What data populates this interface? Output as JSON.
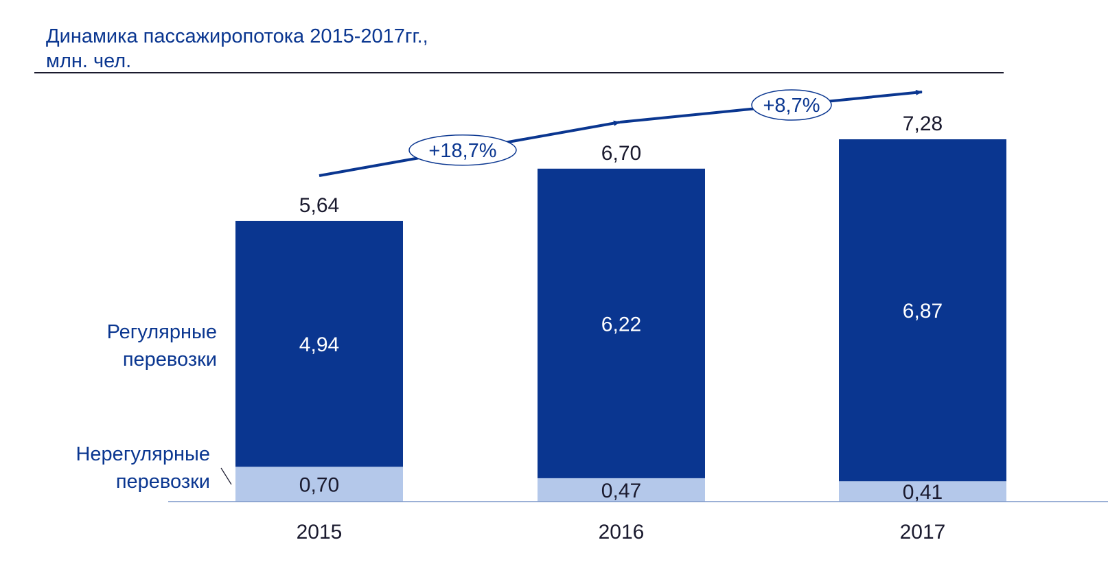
{
  "title_line1": "Динамика пассажиропотока 2015-2017гг.,",
  "title_line2": "млн. чел.",
  "colors": {
    "regular": "#0A3690",
    "irregular": "#B4C8EA",
    "text_blue": "#0A3690",
    "text_dark": "#1A1A2E",
    "axis": "#7A96C8"
  },
  "chart_data": {
    "type": "bar",
    "stacked": true,
    "categories": [
      "2015",
      "2016",
      "2017"
    ],
    "series": [
      {
        "name": "Нерегулярные перевозки",
        "name_lines": [
          "Нерегулярные",
          "перевозки"
        ],
        "values": [
          0.7,
          0.47,
          0.41
        ],
        "labels": [
          "0,70",
          "0,47",
          "0,41"
        ]
      },
      {
        "name": "Регулярные перевозки",
        "name_lines": [
          "Регулярные",
          "перевозки"
        ],
        "values": [
          4.94,
          6.22,
          6.87
        ],
        "labels": [
          "4,94",
          "6,22",
          "6,87"
        ]
      }
    ],
    "totals": [
      5.64,
      6.7,
      7.28
    ],
    "total_labels": [
      "5,64",
      "6,70",
      "7,28"
    ],
    "growth": [
      {
        "from": "2015",
        "to": "2016",
        "label": "+18,7%"
      },
      {
        "from": "2016",
        "to": "2017",
        "label": "+8,7%"
      }
    ],
    "ylim": [
      0,
      7.28
    ],
    "grid": false,
    "legend": "left"
  }
}
